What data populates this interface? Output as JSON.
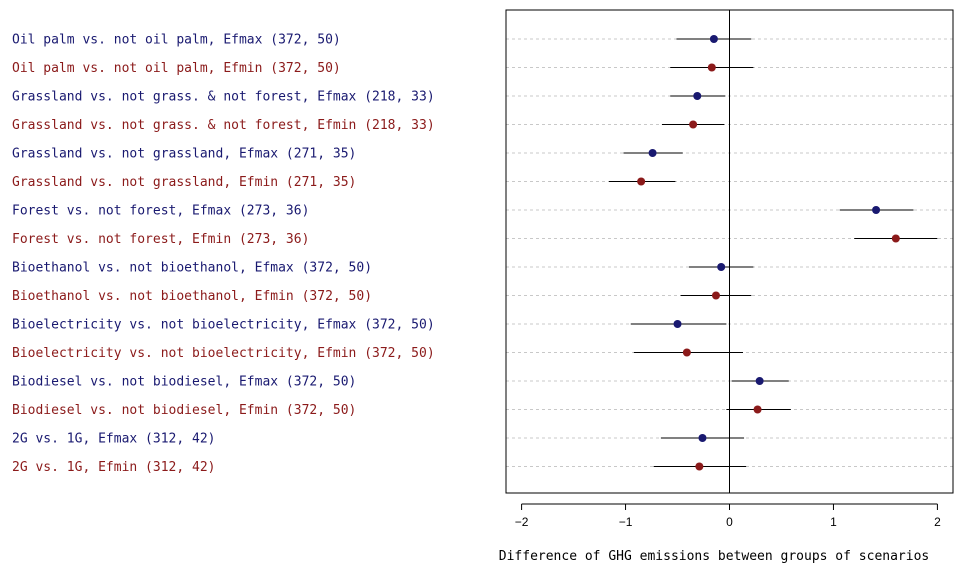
{
  "chart_data": {
    "type": "forest",
    "xlabel": "Difference of GHG emissions between groups of scenarios",
    "xlim": [
      -2.15,
      2.15
    ],
    "x_ticks": [
      -2,
      -1,
      0,
      1,
      2
    ],
    "x_tick_labels": [
      "−2",
      "−1",
      "0",
      "1",
      "2"
    ],
    "reference_line": 0,
    "grid": "horizontal-dashed",
    "colors": {
      "Efmax": "#191970",
      "Efmin": "#8b1a1a"
    },
    "rows": [
      {
        "label": "Oil palm vs. not oil palm, Efmax (372, 50)",
        "group": "Efmax",
        "estimate": -0.15,
        "lower": -0.51,
        "upper": 0.21
      },
      {
        "label": "Oil palm vs. not oil palm, Efmin (372, 50)",
        "group": "Efmin",
        "estimate": -0.17,
        "lower": -0.57,
        "upper": 0.23
      },
      {
        "label": "Grassland vs. not grass. & not forest, Efmax (218, 33)",
        "group": "Efmax",
        "estimate": -0.31,
        "lower": -0.57,
        "upper": -0.04
      },
      {
        "label": "Grassland vs. not grass. & not forest, Efmin (218, 33)",
        "group": "Efmin",
        "estimate": -0.35,
        "lower": -0.65,
        "upper": -0.05
      },
      {
        "label": "Grassland vs. not grassland, Efmax (271, 35)",
        "group": "Efmax",
        "estimate": -0.74,
        "lower": -1.02,
        "upper": -0.45
      },
      {
        "label": "Grassland vs. not grassland, Efmin (271, 35)",
        "group": "Efmin",
        "estimate": -0.85,
        "lower": -1.16,
        "upper": -0.52
      },
      {
        "label": "Forest vs. not forest, Efmax (273, 36)",
        "group": "Efmax",
        "estimate": 1.41,
        "lower": 1.06,
        "upper": 1.77
      },
      {
        "label": "Forest vs. not forest, Efmin (273, 36)",
        "group": "Efmin",
        "estimate": 1.6,
        "lower": 1.2,
        "upper": 2.0
      },
      {
        "label": "Bioethanol vs. not bioethanol, Efmax (372, 50)",
        "group": "Efmax",
        "estimate": -0.08,
        "lower": -0.39,
        "upper": 0.23
      },
      {
        "label": "Bioethanol vs. not bioethanol, Efmin (372, 50)",
        "group": "Efmin",
        "estimate": -0.13,
        "lower": -0.47,
        "upper": 0.21
      },
      {
        "label": "Bioelectricity vs. not bioelectricity, Efmax (372, 50)",
        "group": "Efmax",
        "estimate": -0.5,
        "lower": -0.95,
        "upper": -0.03
      },
      {
        "label": "Bioelectricity vs. not bioelectricity, Efmin (372, 50)",
        "group": "Efmin",
        "estimate": -0.41,
        "lower": -0.92,
        "upper": 0.13
      },
      {
        "label": "Biodiesel vs. not biodiesel, Efmax (372, 50)",
        "group": "Efmax",
        "estimate": 0.29,
        "lower": 0.02,
        "upper": 0.57
      },
      {
        "label": "Biodiesel vs. not biodiesel, Efmin (372, 50)",
        "group": "Efmin",
        "estimate": 0.27,
        "lower": -0.03,
        "upper": 0.59
      },
      {
        "label": "2G vs. 1G, Efmax (312, 42)",
        "group": "Efmax",
        "estimate": -0.26,
        "lower": -0.66,
        "upper": 0.14
      },
      {
        "label": "2G vs. 1G, Efmin (312, 42)",
        "group": "Efmin",
        "estimate": -0.29,
        "lower": -0.73,
        "upper": 0.16
      }
    ]
  }
}
